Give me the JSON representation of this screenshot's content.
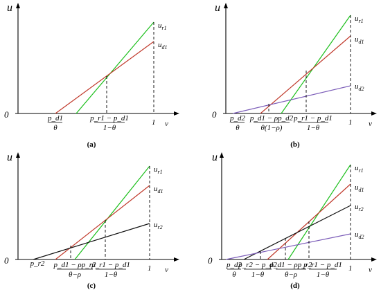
{
  "axis": {
    "y": "u",
    "x": "v",
    "origin": "0",
    "one": "1"
  },
  "panels": [
    {
      "caption": "(a)",
      "curves": [
        "u_r1",
        "u_d1"
      ],
      "ticks": [
        {
          "num": "p_d1",
          "den": "θ"
        },
        {
          "num": "p_r1 − p_d1",
          "den": "1−θ"
        }
      ]
    },
    {
      "caption": "(b)",
      "curves": [
        "u_r1",
        "u_d1",
        "u_d2"
      ],
      "ticks": [
        {
          "num": "p_d2",
          "den": "θ"
        },
        {
          "num": "p_d1 − ρp_d2",
          "den": "θ(1−ρ)"
        },
        {
          "num": "p_r1 − p_d1",
          "den": "1−θ"
        }
      ]
    },
    {
      "caption": "(c)",
      "curves": [
        "u_r1",
        "u_d1",
        "u_r2"
      ],
      "single_tick": "p_r2",
      "ticks": [
        {
          "num": "p_d1 − ρp_r2",
          "den": "θ−ρ"
        },
        {
          "num": "p_r1 − p_d1",
          "den": "1−θ"
        }
      ]
    },
    {
      "caption": "(d)",
      "curves": [
        "u_r1",
        "u_d1",
        "u_r2",
        "u_d2"
      ],
      "ticks": [
        {
          "num": "p_d2",
          "den": "θ"
        },
        {
          "num": "p_r2 − p_d2",
          "den": "1−θ"
        },
        {
          "num": "p_d1 − ρp_r2",
          "den": "θ−ρ"
        },
        {
          "num": "p_r1 − p_d1",
          "den": "1−θ"
        }
      ]
    }
  ],
  "colors": {
    "u_r1": "#1bbf1b",
    "u_d1": "#c0392b",
    "u_d2": "#7b5cb8",
    "u_r2": "#111111"
  }
}
